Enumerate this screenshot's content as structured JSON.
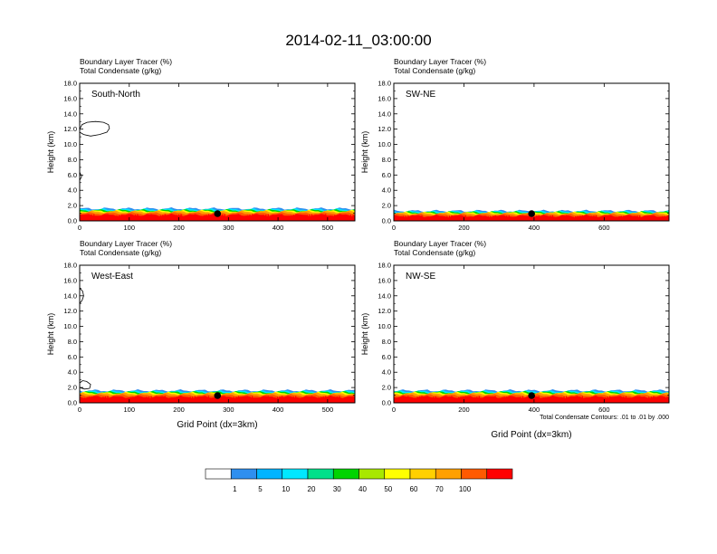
{
  "figure": {
    "title": "2014-02-11_03:00:00",
    "contour_note": "Total Condensate Contours: .01 to .01 by .000",
    "xlabel": "Grid Point (dx=3km)",
    "ylabel": "Height (km)"
  },
  "legend": {
    "labels": [
      "1",
      "5",
      "10",
      "20",
      "30",
      "40",
      "50",
      "60",
      "70",
      "100"
    ],
    "colors": [
      "#ffffff",
      "#2e8fef",
      "#00b4ff",
      "#00e8ff",
      "#00e08a",
      "#00d400",
      "#a8e800",
      "#ffff00",
      "#ffd000",
      "#ffa000",
      "#ff5a00",
      "#ff0000"
    ]
  },
  "chart_data": [
    {
      "type": "heatmap",
      "panel_title": "South-North",
      "variables": [
        "Boundary Layer Tracer   (%)",
        "Total Condensate   (g/kg)"
      ],
      "xlim": [
        0,
        555
      ],
      "xticks": [
        0,
        100,
        200,
        300,
        400,
        500
      ],
      "ylim": [
        0,
        18
      ],
      "yticks": [
        "0.0",
        "2.0",
        "4.0",
        "6.0",
        "8.0",
        "10.0",
        "12.0",
        "14.0",
        "16.0",
        "18.0"
      ],
      "marker_x": 278,
      "boundary_layer_top_km": 1.6,
      "clouds": [
        {
          "x": [
            0,
            5,
            15,
            32,
            48,
            58,
            60,
            55,
            40,
            22,
            8,
            0,
            0
          ],
          "y": [
            12.0,
            12.6,
            12.9,
            13.0,
            12.9,
            12.6,
            12.1,
            11.6,
            11.3,
            11.1,
            11.3,
            11.6,
            12.0
          ]
        },
        {
          "x": [
            0,
            4,
            0
          ],
          "y": [
            6.4,
            5.8,
            5.3
          ]
        }
      ]
    },
    {
      "type": "heatmap",
      "panel_title": "SW-NE",
      "variables": [
        "Boundary Layer Tracer   (%)",
        "Total Condensate   (g/kg)"
      ],
      "xlim": [
        0,
        785
      ],
      "xticks": [
        0,
        200,
        400,
        600
      ],
      "ylim": [
        0,
        18
      ],
      "yticks": [
        "0.0",
        "2.0",
        "4.0",
        "6.0",
        "8.0",
        "10.0",
        "12.0",
        "14.0",
        "16.0",
        "18.0"
      ],
      "marker_x": 393,
      "boundary_layer_top_km": 1.3,
      "clouds": []
    },
    {
      "type": "heatmap",
      "panel_title": "West-East",
      "variables": [
        "Boundary Layer Tracer   (%)",
        "Total Condensate   (g/kg)"
      ],
      "xlim": [
        0,
        555
      ],
      "xticks": [
        0,
        100,
        200,
        300,
        400,
        500
      ],
      "ylim": [
        0,
        18
      ],
      "yticks": [
        "0.0",
        "2.0",
        "4.0",
        "6.0",
        "8.0",
        "10.0",
        "12.0",
        "14.0",
        "16.0",
        "18.0"
      ],
      "marker_x": 278,
      "boundary_layer_top_km": 1.6,
      "clouds": [
        {
          "x": [
            0,
            6,
            8,
            5,
            0
          ],
          "y": [
            15.0,
            14.6,
            14.0,
            13.4,
            13.0
          ]
        },
        {
          "x": [
            0,
            6,
            14,
            22,
            20,
            10,
            0
          ],
          "y": [
            2.6,
            2.9,
            2.8,
            2.4,
            1.9,
            1.8,
            2.0
          ]
        }
      ]
    },
    {
      "type": "heatmap",
      "panel_title": "NW-SE",
      "variables": [
        "Boundary Layer Tracer   (%)",
        "Total Condensate   (g/kg)"
      ],
      "xlim": [
        0,
        785
      ],
      "xticks": [
        0,
        200,
        400,
        600
      ],
      "ylim": [
        0,
        18
      ],
      "yticks": [
        "0.0",
        "2.0",
        "4.0",
        "6.0",
        "8.0",
        "10.0",
        "12.0",
        "14.0",
        "16.0",
        "18.0"
      ],
      "marker_x": 393,
      "boundary_layer_top_km": 1.6,
      "clouds": []
    }
  ]
}
